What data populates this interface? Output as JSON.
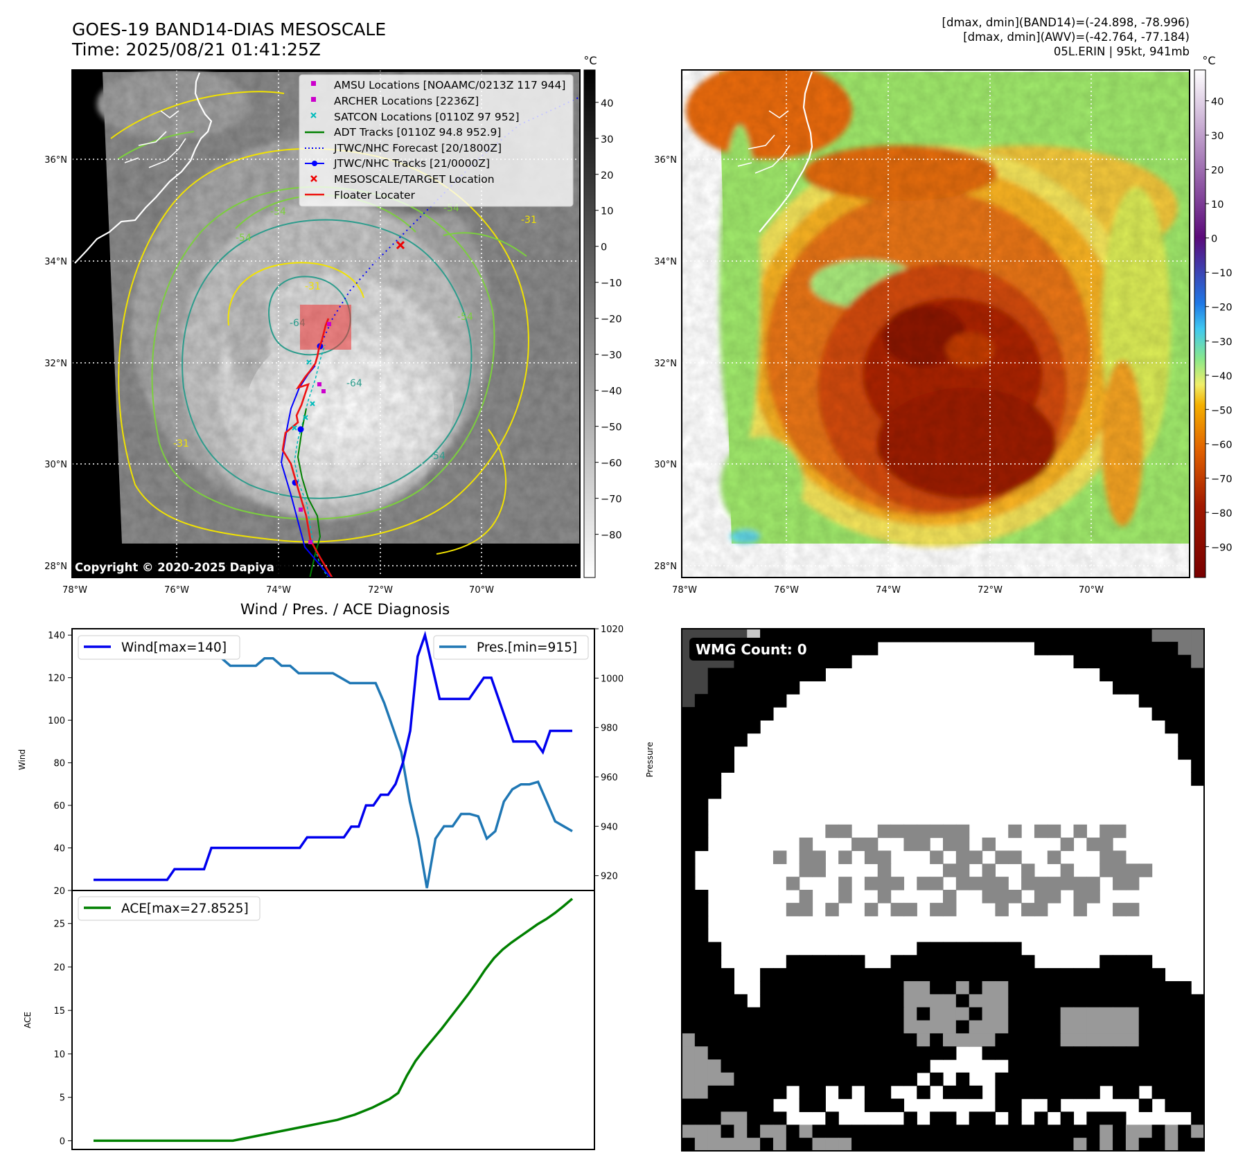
{
  "header": {
    "title_line1": "GOES-19 BAND14-DIAS MESOSCALE",
    "title_line2": "Time: 2025/08/21 01:41:25Z",
    "info_line1": "[dmax, dmin](BAND14)=(-24.898, -78.996)",
    "info_line2": "[dmax, dmin](AWV)=(-42.764, -77.184)",
    "info_line3": "05L.ERIN | 95kt, 941mb"
  },
  "colors": {
    "wind": "#0000ee",
    "pressure": "#1f77b4",
    "ace": "#008000",
    "floater": "#ee1111",
    "amsu": "#cc00cc",
    "satcon": "#00bbbb",
    "adt": "#008000",
    "forecast": "#0000ff",
    "mesoscale": "#ee0000"
  },
  "map": {
    "lat_labels": [
      "36°N",
      "34°N",
      "32°N",
      "30°N",
      "28°N"
    ],
    "lon_labels": [
      "78°W",
      "76°W",
      "74°W",
      "72°W",
      "70°W"
    ],
    "copyright": "Copyright © 2020-2025 Dapiya",
    "contour_labels": [
      "-54",
      "-54",
      "-54",
      "-31",
      "-31",
      "-54",
      "-64",
      "-64",
      "-31",
      "-54"
    ],
    "legend": [
      {
        "label": "AMSU Locations [NOAAMC/0213Z 117 944]",
        "marker": "square",
        "color": "#cc00cc"
      },
      {
        "label": "ARCHER Locations [2236Z]",
        "marker": "square",
        "color": "#cc00cc"
      },
      {
        "label": "SATCON Locations [0110Z 97 952]",
        "marker": "x",
        "color": "#00bbbb"
      },
      {
        "label": "ADT Tracks [0110Z 94.8 952.9]",
        "marker": "line",
        "color": "#008000"
      },
      {
        "label": "JTWC/NHC Forecast [20/1800Z]",
        "marker": "dotted",
        "color": "#0000ff"
      },
      {
        "label": "JTWC/NHC Tracks [21/0000Z]",
        "marker": "line-dot",
        "color": "#0000ff"
      },
      {
        "label": "MESOSCALE/TARGET Location",
        "marker": "x",
        "color": "#ee0000"
      },
      {
        "label": "Floater Locater",
        "marker": "line",
        "color": "#ee1111"
      }
    ],
    "gray_colorbar": {
      "unit": "°C",
      "ticks": [
        "40",
        "30",
        "20",
        "10",
        "0",
        "−10",
        "−20",
        "−30",
        "−40",
        "−50",
        "−60",
        "−70",
        "−80"
      ]
    },
    "color_colorbar": {
      "unit": "°C",
      "ticks": [
        "40",
        "30",
        "20",
        "10",
        "0",
        "−10",
        "−20",
        "−30",
        "−40",
        "−50",
        "−60",
        "−70",
        "−80",
        "−90"
      ]
    }
  },
  "wmg": {
    "label": "WMG Count: 0"
  },
  "chart_data": [
    {
      "type": "line",
      "title": "Wind / Pres. / ACE Diagnosis",
      "ylabel": "Wind",
      "ylim": [
        20,
        143
      ],
      "yticks": [
        "140",
        "120",
        "100",
        "80",
        "60",
        "40",
        "20"
      ],
      "series": [
        {
          "name": "Wind[max=140]",
          "axis": "left",
          "values": [
            25,
            25,
            25,
            25,
            25,
            25,
            25,
            25,
            25,
            25,
            25,
            30,
            30,
            30,
            30,
            30,
            40,
            40,
            40,
            40,
            40,
            40,
            40,
            40,
            40,
            40,
            40,
            40,
            40,
            45,
            45,
            45,
            45,
            45,
            45,
            50,
            50,
            60,
            60,
            65,
            65,
            70,
            80,
            95,
            130,
            140,
            125,
            110,
            110,
            110,
            110,
            110,
            115,
            120,
            120,
            110,
            100,
            90,
            90,
            90,
            90,
            85,
            95,
            95,
            95,
            95
          ]
        },
        {
          "name": "Pres.[min=915]",
          "axis": "right",
          "ylabel": "Pressure",
          "ylim": [
            914,
            1020
          ],
          "yticks": [
            "1020",
            "1000",
            "980",
            "960",
            "940",
            "920"
          ],
          "values": [
            1015,
            1015,
            1010,
            1010,
            1008,
            1008,
            1008,
            1008,
            1008,
            1008,
            1008,
            1008,
            1008,
            1008,
            1008,
            1008,
            1005,
            1005,
            1005,
            1005,
            1008,
            1008,
            1005,
            1005,
            1002,
            1002,
            1002,
            1002,
            1002,
            1000,
            998,
            998,
            998,
            998,
            990,
            980,
            970,
            950,
            935,
            915,
            935,
            940,
            940,
            945,
            945,
            944,
            935,
            938,
            950,
            955,
            957,
            957,
            958,
            950,
            942,
            940,
            938
          ]
        }
      ]
    },
    {
      "type": "line",
      "ylabel": "ACE",
      "ylim": [
        -1,
        28.8
      ],
      "yticks": [
        "25",
        "20",
        "15",
        "10",
        "5",
        "0"
      ],
      "series": [
        {
          "name": "ACE[max=27.8525]",
          "values": [
            0,
            0,
            0,
            0,
            0,
            0,
            0,
            0,
            0,
            0,
            0,
            0,
            0,
            0,
            0,
            0,
            0,
            0.2,
            0.4,
            0.6,
            0.8,
            1.0,
            1.2,
            1.4,
            1.6,
            1.8,
            2.0,
            2.2,
            2.4,
            2.7,
            3.0,
            3.4,
            3.8,
            4.3,
            4.8,
            5.5,
            7.5,
            9.2,
            10.5,
            11.7,
            12.9,
            14.2,
            15.5,
            16.8,
            18.2,
            19.7,
            21.0,
            22.0,
            22.8,
            23.5,
            24.2,
            24.9,
            25.5,
            26.2,
            27.0,
            27.85
          ]
        }
      ]
    }
  ]
}
